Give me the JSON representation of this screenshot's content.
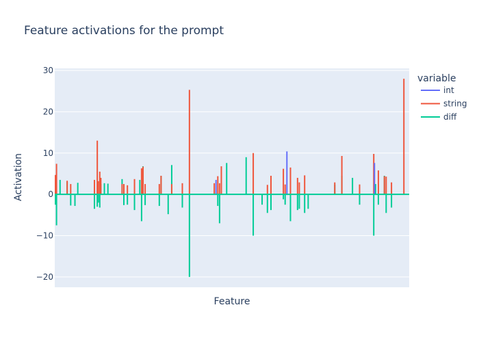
{
  "chart_data": {
    "type": "line",
    "title": "Feature activations for the prompt",
    "xlabel": "Feature",
    "ylabel": "Activation",
    "ylim": [
      -22.5,
      30.5
    ],
    "xlim": [
      0,
      100
    ],
    "yticks": [
      -20,
      -10,
      0,
      10,
      20,
      30
    ],
    "ytick_labels": [
      "−20",
      "−10",
      "0",
      "10",
      "20",
      "30"
    ],
    "x_ticks_visible": false,
    "grid": true,
    "legend": {
      "title": "variable",
      "placement": "right"
    },
    "colors": {
      "int": "#636efa",
      "string": "#ef553b",
      "diff": "#00cc96",
      "plot_bg": "#e5ecf6",
      "grid": "#ffffff"
    },
    "series": [
      {
        "name": "int",
        "x": [
          45.5,
          65.5,
          90.2
        ],
        "y": [
          3.5,
          10.4,
          7.6
        ]
      },
      {
        "name": "string",
        "x": [
          0.2,
          0.5,
          3.5,
          4.5,
          11.2,
          12.0,
          12.3,
          12.7,
          13.0,
          19.0,
          19.5,
          20.5,
          22.5,
          24.5,
          24.9,
          25.5,
          29.5,
          30.0,
          33.0,
          36.0,
          38.0,
          45.0,
          46.0,
          46.5,
          47.0,
          56.0,
          60.0,
          61.0,
          64.5,
          65.0,
          66.5,
          68.5,
          69.0,
          70.5,
          79.0,
          81.0,
          86.0,
          90.0,
          91.3,
          93.0,
          93.5,
          95.0,
          98.5
        ],
        "y": [
          4.7,
          7.4,
          3.3,
          2.5,
          3.5,
          13.0,
          3.2,
          5.5,
          4.0,
          2.5,
          2.5,
          2.2,
          3.7,
          6.3,
          6.7,
          2.5,
          2.5,
          4.5,
          2.5,
          2.7,
          25.3,
          2.7,
          4.4,
          2.7,
          6.8,
          10.0,
          2.3,
          4.5,
          6.2,
          2.4,
          6.5,
          4.0,
          2.9,
          4.6,
          2.9,
          9.3,
          2.4,
          9.8,
          5.8,
          4.4,
          4.3,
          2.9,
          28.0
        ]
      },
      {
        "name": "diff",
        "x": [
          0.2,
          0.5,
          1.5,
          3.5,
          4.5,
          5.7,
          6.5,
          11.2,
          12.0,
          12.3,
          12.7,
          13.0,
          14.0,
          15.0,
          19.0,
          19.5,
          20.5,
          22.5,
          24.0,
          24.5,
          24.9,
          25.5,
          29.5,
          30.0,
          32.0,
          33.0,
          36.0,
          38.0,
          46.0,
          46.5,
          48.5,
          54.0,
          56.0,
          58.5,
          60.0,
          61.0,
          64.5,
          65.0,
          66.5,
          68.5,
          69.0,
          70.5,
          71.5,
          79.0,
          81.0,
          84.0,
          86.0,
          90.0,
          90.5,
          91.3,
          93.0,
          93.5,
          95.0
        ],
        "y": [
          -2.5,
          -7.5,
          3.5,
          3.0,
          -2.7,
          -2.8,
          2.8,
          -3.5,
          -3.0,
          -2.0,
          -3.2,
          2.5,
          2.7,
          2.6,
          3.7,
          -2.6,
          -2.5,
          -3.8,
          3.5,
          -6.5,
          6.8,
          -2.6,
          -2.8,
          4.5,
          -4.8,
          7.1,
          -3.2,
          -20.0,
          -2.8,
          -7.0,
          7.6,
          9.0,
          -10.0,
          -2.5,
          -4.5,
          -3.8,
          -1.2,
          -2.5,
          -6.5,
          -3.8,
          -3.5,
          -4.5,
          -3.5,
          2.4,
          4.5,
          4.0,
          -2.5,
          -10.0,
          2.5,
          -2.5,
          4.5,
          -4.5,
          -3.2
        ]
      }
    ]
  }
}
